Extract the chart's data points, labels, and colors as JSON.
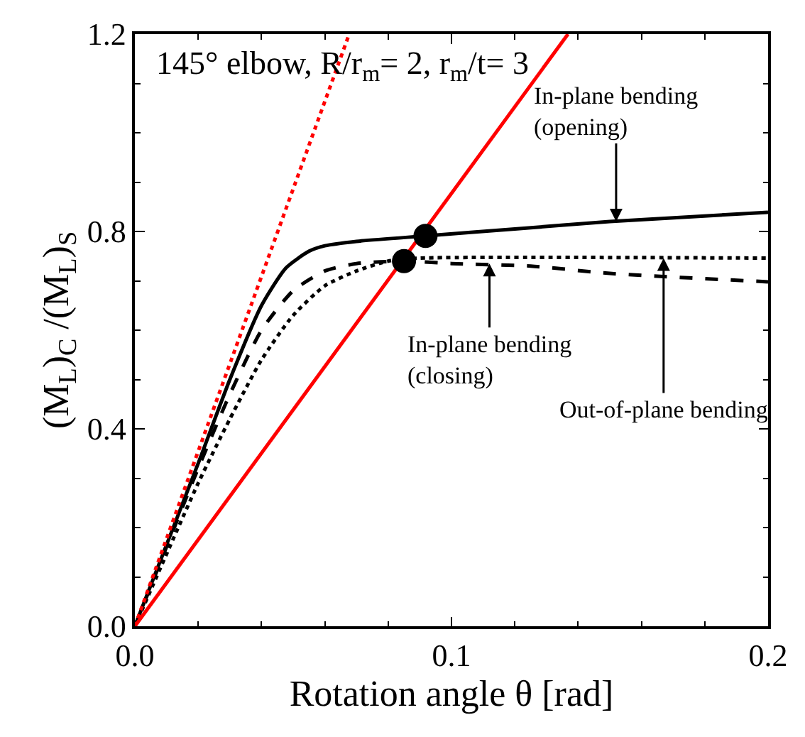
{
  "chart_data": {
    "type": "line",
    "xlabel": "Rotation angle θ [rad]",
    "ylabel": "(M$_{L}$)$_{C}$ /(M$_{L}$)$_{S}$",
    "xlim": [
      0,
      0.2
    ],
    "ylim": [
      0,
      1.2
    ],
    "xticks": [
      {
        "value": 0,
        "label": "0.0"
      },
      0.1,
      0.2
    ],
    "yticks": [
      {
        "value": 0,
        "label": "0.0"
      },
      0.4,
      0.8,
      1.2
    ],
    "marker": "none",
    "series": [
      {
        "color": "#000000",
        "line_style": "solid",
        "x": [
          0,
          0.02,
          0.03,
          0.04,
          0.0477,
          0.055,
          0.06,
          0.07,
          0.0918,
          0.12,
          0.15,
          0.2
        ],
        "values": [
          0,
          0.33,
          0.5,
          0.65,
          0.726,
          0.76,
          0.771,
          0.78,
          0.791,
          0.805,
          0.82,
          0.839
        ]
      },
      {
        "color": "#000000",
        "line_style": "dashed",
        "x": [
          0,
          0.02,
          0.03,
          0.04,
          0.05,
          0.06,
          0.07,
          0.085,
          0.1,
          0.125,
          0.15,
          0.2
        ],
        "values": [
          0,
          0.32,
          0.47,
          0.6,
          0.68,
          0.72,
          0.735,
          0.74,
          0.735,
          0.73,
          0.715,
          0.698
        ]
      },
      {
        "color": "#000000",
        "line_style": "dotted",
        "x": [
          0,
          0.02,
          0.03,
          0.04,
          0.05,
          0.06,
          0.07,
          0.08,
          0.09,
          0.2
        ],
        "values": [
          0,
          0.29,
          0.42,
          0.54,
          0.63,
          0.69,
          0.72,
          0.74,
          0.746,
          0.746
        ]
      },
      {
        "color": "#ff0000",
        "line_style": "solid",
        "x": [
          0,
          0.1368
        ],
        "values": [
          0,
          1.2
        ]
      },
      {
        "color": "#ff0000",
        "line_style": "dotted",
        "x": [
          0,
          0.0677
        ],
        "values": [
          0,
          1.2
        ]
      },
      {
        "type": "scatter",
        "color": "#000000",
        "marker": "circle",
        "x": [
          0.0918,
          0.085
        ],
        "values": [
          0.791,
          0.74
        ]
      }
    ],
    "annotations": [
      "145° elbow, R/r$_{m}$= 2, r$_{m}$/t= 3",
      {
        "text": "In-plane bending\n(opening)",
        "x": 0.152,
        "y": 0.82
      },
      {
        "text": "In-plane bending\n(closing)",
        "x": 0.112,
        "y": 0.735
      },
      {
        "text": "Out-of-plane bending",
        "x": 0.167,
        "y": 0.746
      }
    ]
  }
}
